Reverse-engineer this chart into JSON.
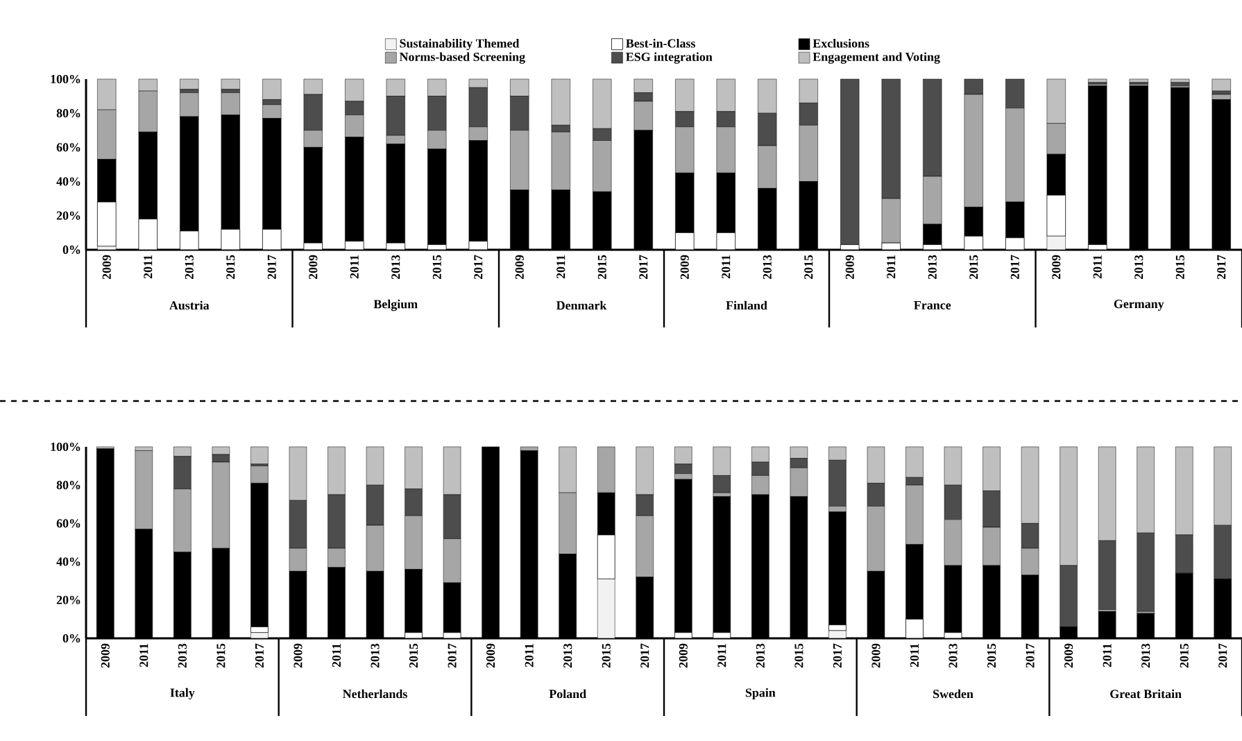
{
  "chart_data": [
    {
      "type": "bar",
      "stacked": true,
      "legend": "top",
      "categories": [
        "2009",
        "2011",
        "2013",
        "2015",
        "2017",
        "2009",
        "2011",
        "2013",
        "2015",
        "2017",
        "2009",
        "2011",
        "2015",
        "2017",
        "2009",
        "2011",
        "2013",
        "2015",
        "2009",
        "2011",
        "2013",
        "2015",
        "2017",
        "2009",
        "2011",
        "2013",
        "2015",
        "2017"
      ],
      "annotations": [
        "Austria",
        "Belgium",
        "Denmark",
        "Finland",
        "France",
        "Germany"
      ],
      "ylim": [
        0,
        100
      ],
      "yticks": [
        {
          "value": 0,
          "label": "0%"
        },
        {
          "value": 20,
          "label": "20%"
        },
        {
          "value": 40,
          "label": "40%"
        },
        {
          "value": 60,
          "label": "60%"
        },
        {
          "value": 80,
          "label": "80%"
        },
        {
          "value": 100,
          "label": "100%"
        }
      ],
      "series": [
        {
          "name": "Sustainability Themed",
          "color": "#f2f2f2",
          "values": [
            2,
            0,
            0,
            0,
            0,
            0,
            0,
            0,
            0,
            0,
            0,
            0,
            0,
            0,
            0,
            0,
            0,
            0,
            0,
            0,
            0,
            0,
            0,
            8,
            0,
            0,
            0,
            0
          ]
        },
        {
          "name": "Best-in-Class",
          "color": "#ffffff",
          "values": [
            26,
            18,
            11,
            12,
            12,
            4,
            5,
            4,
            3,
            5,
            0,
            0,
            0,
            0,
            10,
            10,
            0,
            0,
            3,
            4,
            3,
            8,
            7,
            24,
            3,
            0,
            0,
            0
          ]
        },
        {
          "name": "Exclusions",
          "color": "#000000",
          "values": [
            25,
            51,
            67,
            67,
            65,
            56,
            61,
            58,
            56,
            59,
            35,
            35,
            34,
            70,
            35,
            35,
            36,
            40,
            0,
            0,
            12,
            17,
            21,
            24,
            93,
            96,
            95,
            88
          ]
        },
        {
          "name": "Norms-based Screening",
          "color": "#a6a6a6",
          "values": [
            29,
            24,
            14,
            13,
            8,
            10,
            13,
            5,
            11,
            8,
            35,
            34,
            30,
            17,
            27,
            27,
            25,
            33,
            0,
            26,
            28,
            66,
            55,
            18,
            1,
            1,
            1,
            3
          ]
        },
        {
          "name": "ESG integration",
          "color": "#4d4d4d",
          "values": [
            0,
            0,
            2,
            2,
            3,
            21,
            8,
            23,
            20,
            23,
            20,
            4,
            7,
            5,
            9,
            9,
            19,
            13,
            97,
            70,
            57,
            9,
            17,
            0,
            1,
            1,
            2,
            2
          ]
        },
        {
          "name": "Engagement and Voting",
          "color": "#bfbfbf",
          "values": [
            18,
            7,
            6,
            6,
            12,
            9,
            13,
            10,
            10,
            5,
            10,
            27,
            29,
            8,
            19,
            19,
            20,
            14,
            0,
            0,
            0,
            0,
            0,
            26,
            2,
            2,
            2,
            7
          ]
        }
      ]
    },
    {
      "type": "bar",
      "stacked": true,
      "categories": [
        "2009",
        "2011",
        "2013",
        "2015",
        "2017",
        "2009",
        "2011",
        "2013",
        "2015",
        "2017",
        "2009",
        "2011",
        "2013",
        "2015",
        "2017",
        "2009",
        "2011",
        "2013",
        "2015",
        "2017",
        "2009",
        "2011",
        "2013",
        "2015",
        "2017",
        "2009",
        "2011",
        "2013",
        "2015",
        "2017"
      ],
      "annotations": [
        "Italy",
        "Netherlands",
        "Poland",
        "Spain",
        "Sweden",
        "Great Britain"
      ],
      "ylim": [
        0,
        100
      ],
      "yticks": [
        {
          "value": 0,
          "label": "0%"
        },
        {
          "value": 20,
          "label": "20%"
        },
        {
          "value": 40,
          "label": "40%"
        },
        {
          "value": 60,
          "label": "60%"
        },
        {
          "value": 80,
          "label": "80%"
        },
        {
          "value": 100,
          "label": "100%"
        }
      ],
      "series": [
        {
          "color": "#f2f2f2",
          "values": [
            0,
            0,
            0,
            0,
            3,
            0,
            0,
            0,
            0,
            0,
            0,
            0,
            0,
            31,
            0,
            0,
            0,
            0,
            0,
            4,
            0,
            0,
            0,
            0,
            0,
            0,
            0,
            0,
            0,
            0
          ]
        },
        {
          "color": "#ffffff",
          "values": [
            0,
            0,
            0,
            0,
            3,
            0,
            0,
            0,
            3,
            3,
            0,
            0,
            0,
            23,
            0,
            3,
            3,
            0,
            0,
            3,
            0,
            10,
            3,
            0,
            0,
            0,
            0,
            0,
            0,
            0
          ]
        },
        {
          "color": "#000000",
          "values": [
            99,
            57,
            45,
            47,
            75,
            35,
            37,
            35,
            33,
            26,
            100,
            98,
            44,
            22,
            32,
            80,
            71,
            75,
            74,
            59,
            35,
            39,
            35,
            38,
            33,
            6,
            14,
            13,
            34,
            31
          ]
        },
        {
          "color": "#a6a6a6",
          "values": [
            0,
            41,
            33,
            45,
            9,
            12,
            10,
            24,
            28,
            23,
            0,
            2,
            32,
            24,
            32,
            3,
            2,
            10,
            15,
            3,
            34,
            31,
            24,
            20,
            14,
            0,
            1,
            1,
            0,
            0
          ]
        },
        {
          "color": "#4d4d4d",
          "values": [
            0,
            0,
            17,
            4,
            1,
            25,
            28,
            21,
            14,
            23,
            0,
            0,
            0,
            0,
            11,
            5,
            9,
            7,
            5,
            24,
            12,
            4,
            18,
            19,
            13,
            32,
            36,
            41,
            20,
            28
          ]
        },
        {
          "color": "#bfbfbf",
          "values": [
            1,
            2,
            5,
            4,
            9,
            28,
            25,
            20,
            22,
            25,
            0,
            0,
            24,
            0,
            25,
            9,
            15,
            8,
            6,
            7,
            19,
            16,
            20,
            23,
            40,
            62,
            49,
            45,
            46,
            41
          ]
        }
      ]
    }
  ]
}
